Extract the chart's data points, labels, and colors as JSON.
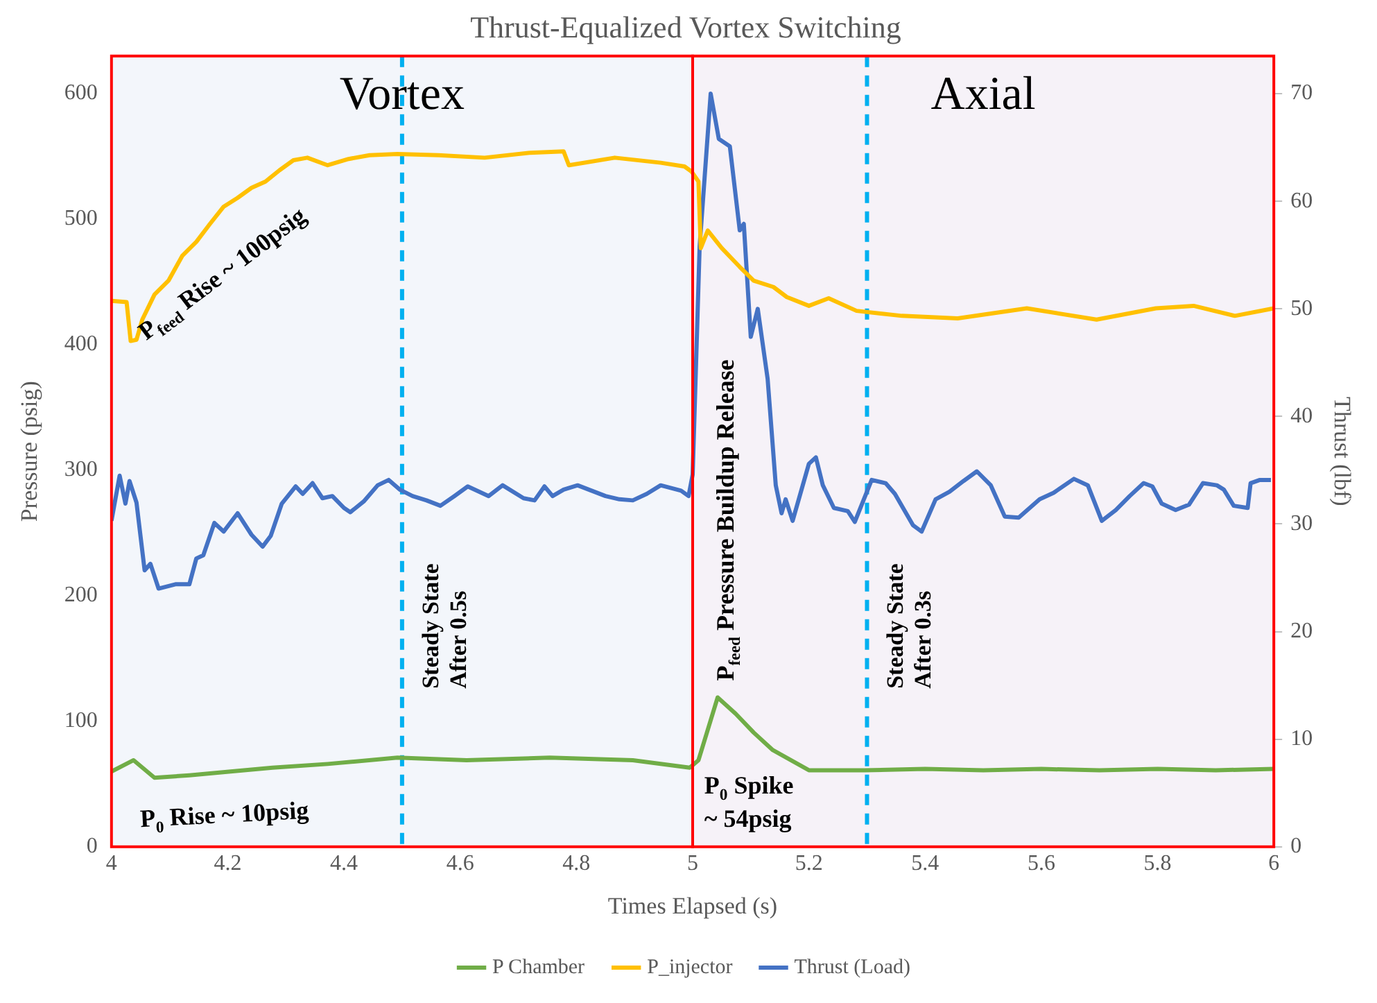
{
  "chart_data": {
    "type": "line",
    "title": "Thrust-Equalized Vortex Switching",
    "xlabel": "Times Elapsed (s)",
    "ylabel": "Pressure (psig)",
    "y2label": "Thrust (lbf)",
    "xlim": [
      4,
      6
    ],
    "xticks": [
      4,
      {
        "value": 4.2,
        "label": "4.2"
      },
      {
        "value": 4.4,
        "label": "4.4"
      },
      {
        "value": 4.6,
        "label": "4.6"
      },
      {
        "value": 4.8,
        "label": "4.8"
      },
      5,
      {
        "value": 5.2,
        "label": "5.2"
      },
      {
        "value": 5.4,
        "label": "5.4"
      },
      {
        "value": 5.6,
        "label": "5.6"
      },
      {
        "value": 5.8,
        "label": "5.8"
      },
      6
    ],
    "ylim": [
      0,
      630
    ],
    "yticks": [
      0,
      100,
      200,
      300,
      400,
      500,
      600
    ],
    "y2lim": [
      0,
      73.5
    ],
    "y2ticks": [
      0,
      10,
      20,
      30,
      40,
      50,
      60,
      70
    ],
    "legend": "bottom",
    "marker": "none",
    "line_style": "solid",
    "series": [
      {
        "name": "P Chamber",
        "color": "#70ad47",
        "x": [
          4.0,
          4.038,
          4.074,
          4.134,
          4.205,
          4.277,
          4.372,
          4.492,
          4.611,
          4.754,
          4.897,
          4.995,
          5.01,
          5.043,
          5.074,
          5.105,
          5.138,
          5.2,
          5.296,
          5.4,
          5.5,
          5.6,
          5.7,
          5.8,
          5.9,
          6.0
        ],
        "values": [
          60,
          69,
          55,
          57,
          60,
          63,
          66,
          71,
          69,
          71,
          69,
          63,
          69,
          119,
          106,
          91,
          77,
          61,
          61,
          62,
          61,
          62,
          61,
          62,
          61,
          62
        ]
      },
      {
        "name": "P_injector",
        "color": "#ffc000",
        "x": [
          4.0,
          4.026,
          4.033,
          4.043,
          4.053,
          4.074,
          4.098,
          4.122,
          4.146,
          4.169,
          4.193,
          4.217,
          4.241,
          4.265,
          4.289,
          4.313,
          4.337,
          4.372,
          4.408,
          4.444,
          4.492,
          4.563,
          4.642,
          4.721,
          4.778,
          4.787,
          4.866,
          4.945,
          4.986,
          4.998,
          5.01,
          5.014,
          5.026,
          5.05,
          5.081,
          5.105,
          5.139,
          5.162,
          5.2,
          5.234,
          5.282,
          5.36,
          5.456,
          5.575,
          5.695,
          5.797,
          5.862,
          5.933,
          6.0
        ],
        "values": [
          435,
          434,
          403,
          404,
          420,
          440,
          451,
          471,
          482,
          496,
          510,
          517,
          525,
          530,
          539,
          547,
          549,
          543,
          548,
          551,
          552,
          551,
          549,
          553,
          554,
          543,
          549,
          545,
          542,
          538,
          530,
          477,
          491,
          477,
          462,
          451,
          446,
          438,
          431,
          437,
          427,
          423,
          421,
          429,
          420,
          429,
          431,
          423,
          429
        ]
      },
      {
        "name": "Thrust (Load)",
        "color": "#4472c4",
        "axis": "y2",
        "x": [
          4.0,
          4.014,
          4.024,
          4.031,
          4.043,
          4.057,
          4.067,
          4.081,
          4.11,
          4.134,
          4.146,
          4.158,
          4.177,
          4.193,
          4.217,
          4.241,
          4.26,
          4.274,
          4.293,
          4.317,
          4.329,
          4.346,
          4.363,
          4.38,
          4.4,
          4.411,
          4.434,
          4.458,
          4.477,
          4.496,
          4.518,
          4.542,
          4.566,
          4.59,
          4.613,
          4.649,
          4.673,
          4.709,
          4.728,
          4.745,
          4.759,
          4.778,
          4.802,
          4.826,
          4.85,
          4.874,
          4.897,
          4.921,
          4.945,
          4.98,
          4.993,
          5.0,
          5.012,
          5.031,
          5.045,
          5.064,
          5.081,
          5.088,
          5.1,
          5.112,
          5.129,
          5.143,
          5.153,
          5.16,
          5.172,
          5.2,
          5.212,
          5.224,
          5.243,
          5.267,
          5.279,
          5.308,
          5.332,
          5.348,
          5.379,
          5.394,
          5.418,
          5.442,
          5.466,
          5.489,
          5.513,
          5.537,
          5.561,
          5.597,
          5.621,
          5.656,
          5.68,
          5.704,
          5.728,
          5.752,
          5.776,
          5.791,
          5.807,
          5.831,
          5.854,
          5.878,
          5.902,
          5.914,
          5.931,
          5.955,
          5.96,
          5.976,
          5.995
        ],
        "values": [
          30.3,
          34.5,
          31.9,
          34.0,
          32.0,
          25.7,
          26.3,
          24.0,
          24.4,
          24.4,
          26.8,
          27.1,
          30.1,
          29.3,
          31.0,
          29.0,
          27.9,
          28.9,
          31.9,
          33.5,
          32.8,
          33.8,
          32.4,
          32.6,
          31.5,
          31.1,
          32.1,
          33.6,
          34.1,
          33.2,
          32.6,
          32.2,
          31.7,
          32.6,
          33.5,
          32.6,
          33.6,
          32.4,
          32.2,
          33.5,
          32.6,
          33.2,
          33.6,
          33.1,
          32.6,
          32.3,
          32.2,
          32.8,
          33.6,
          33.1,
          32.6,
          34.6,
          55.8,
          70.0,
          65.8,
          65.1,
          57.3,
          57.9,
          47.4,
          50.0,
          43.5,
          33.6,
          31.0,
          32.3,
          30.3,
          35.6,
          36.2,
          33.6,
          31.5,
          31.2,
          30.2,
          34.1,
          33.8,
          32.8,
          29.9,
          29.3,
          32.3,
          33.0,
          34.0,
          34.9,
          33.6,
          30.7,
          30.6,
          32.3,
          32.9,
          34.2,
          33.6,
          30.3,
          31.3,
          32.6,
          33.8,
          33.5,
          31.9,
          31.3,
          31.8,
          33.8,
          33.6,
          33.2,
          31.7,
          31.5,
          33.8,
          34.1,
          34.1
        ]
      }
    ],
    "bands": [
      {
        "axis": "x",
        "from": 4,
        "to": 5,
        "label": "Vortex",
        "color": "#f3f6fb"
      },
      {
        "axis": "x",
        "from": 5,
        "to": 6,
        "label": "Axial",
        "color": "#f6f2f8"
      }
    ],
    "ref_lines": [
      {
        "axis": "x",
        "value": 4.5,
        "label": "Steady State After 0.5s",
        "color": "#00b0f0",
        "line_style": "dashed"
      },
      {
        "axis": "x",
        "value": 5.3,
        "label": "Steady State After 0.3s",
        "color": "#00b0f0",
        "line_style": "dashed"
      }
    ],
    "annotations": [
      "P$_{feed}$ Rise ~ 100psig",
      "P$_{0}$ Rise ~ 10psig",
      "P$_{0}$ Spike ~ 54psig",
      "P$_{feed}$ Pressure Buildup Release"
    ]
  }
}
